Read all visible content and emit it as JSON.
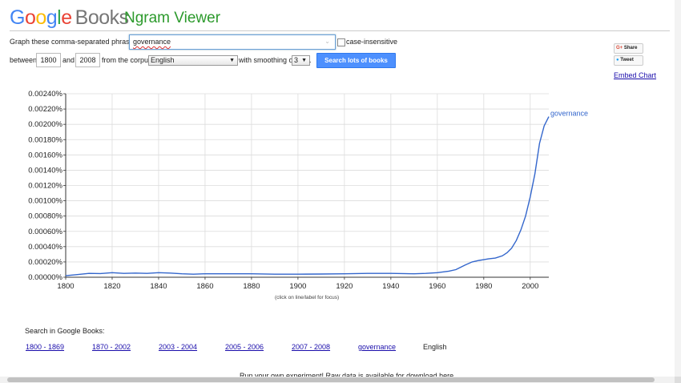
{
  "header": {
    "logo_google": [
      "G",
      "o",
      "o",
      "g",
      "l",
      "e"
    ],
    "logo_books": "Books",
    "product": "Ngram Viewer"
  },
  "form": {
    "phrases_label": "Graph these comma-separated phrases:",
    "phrases_value": "governance",
    "case_insensitive_label": "case-insensitive",
    "between_label": "between",
    "start_year": "1800",
    "and_label": "and",
    "end_year": "2008",
    "corpus_label": "from the corpus",
    "corpus_value": "English",
    "smoothing_label": "with smoothing of",
    "smoothing_value": "3",
    "period": ".",
    "search_button": "Search lots of books"
  },
  "social": {
    "share": "Share",
    "tweet": "Tweet",
    "embed": "Embed Chart"
  },
  "chart_note": "(click on line/label for focus)",
  "chart_data": {
    "type": "line",
    "xlim": [
      1800,
      2008
    ],
    "ylim": [
      0,
      0.0024
    ],
    "x_ticks": [
      "1800",
      "1820",
      "1840",
      "1860",
      "1880",
      "1900",
      "1920",
      "1940",
      "1960",
      "1980",
      "2000"
    ],
    "y_ticks": [
      "0.00000%",
      "0.00020%",
      "0.00040%",
      "0.00060%",
      "0.00080%",
      "0.00100%",
      "0.00120%",
      "0.00140%",
      "0.00160%",
      "0.00180%",
      "0.00200%",
      "0.00220%",
      "0.00240%"
    ],
    "grid": true,
    "series": [
      {
        "name": "governance",
        "color": "#3366cc",
        "x": [
          1800,
          1805,
          1810,
          1815,
          1820,
          1825,
          1830,
          1835,
          1840,
          1845,
          1850,
          1855,
          1860,
          1870,
          1880,
          1890,
          1900,
          1910,
          1920,
          1930,
          1940,
          1945,
          1950,
          1955,
          1960,
          1965,
          1968,
          1970,
          1972,
          1975,
          1978,
          1980,
          1982,
          1985,
          1988,
          1990,
          1992,
          1994,
          1996,
          1998,
          2000,
          2002,
          2004,
          2006,
          2008
        ],
        "y": [
          2e-05,
          3.5e-05,
          5e-05,
          4.8e-05,
          6e-05,
          5e-05,
          5.5e-05,
          5e-05,
          6e-05,
          5.5e-05,
          4.5e-05,
          4e-05,
          4.5e-05,
          4.5e-05,
          4.5e-05,
          4e-05,
          4e-05,
          4.2e-05,
          4.5e-05,
          5e-05,
          5e-05,
          4.8e-05,
          4.5e-05,
          5e-05,
          6e-05,
          8e-05,
          0.0001,
          0.00013,
          0.00016,
          0.0002,
          0.00022,
          0.00023,
          0.00024,
          0.00025,
          0.00028,
          0.00032,
          0.00038,
          0.00048,
          0.00062,
          0.0008,
          0.00105,
          0.00135,
          0.00175,
          0.00198,
          0.0021
        ]
      }
    ]
  },
  "search_in": {
    "label": "Search in Google Books:",
    "links": [
      "1800 - 1869",
      "1870 - 2002",
      "2003 - 2004",
      "2005 - 2006",
      "2007 - 2008",
      "governance"
    ],
    "corpus": "English"
  },
  "footer_text": "Run your own experiment! Raw data is available for download here."
}
